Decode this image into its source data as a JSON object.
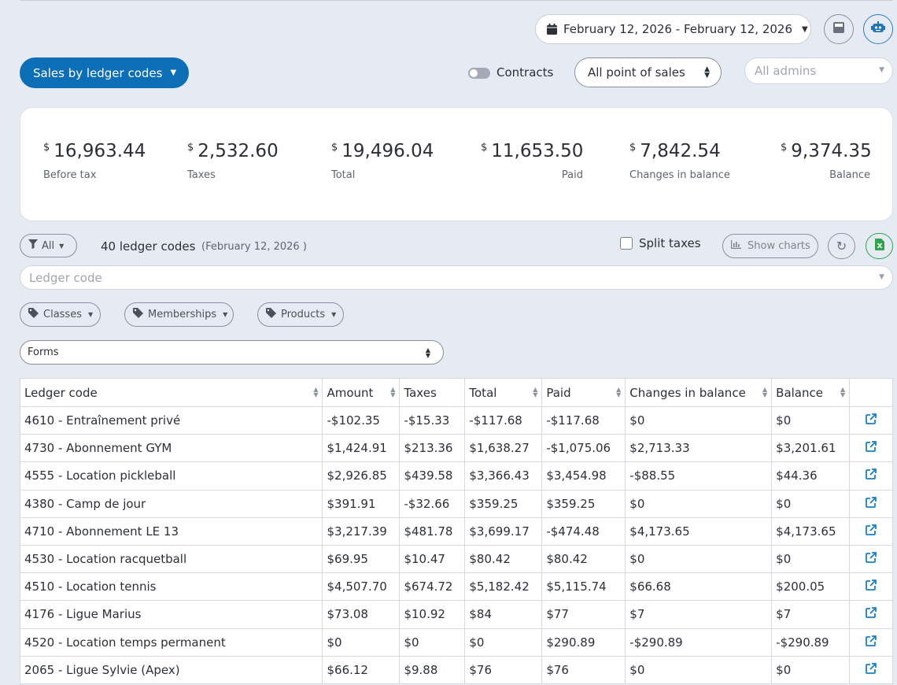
{
  "header": {
    "date_range": "February 12, 2026 - February 12, 2026",
    "calculator_icon": "calculator-icon",
    "robot_icon": "robot-icon"
  },
  "report_selector": {
    "label": "Sales by ledger codes"
  },
  "contracts_toggle": {
    "label": "Contracts",
    "on": false
  },
  "pos_select": {
    "value": "All point of sales"
  },
  "admins_select": {
    "placeholder": "All admins"
  },
  "stats": [
    {
      "currency": "$",
      "value": "16,963.44",
      "label": "Before tax"
    },
    {
      "currency": "$",
      "value": "2,532.60",
      "label": "Taxes"
    },
    {
      "currency": "$",
      "value": "19,496.04",
      "label": "Total"
    },
    {
      "currency": "$",
      "value": "11,653.50",
      "label": "Paid"
    },
    {
      "currency": "$",
      "value": "7,842.54",
      "label": "Changes in balance"
    },
    {
      "currency": "$",
      "value": "9,374.35",
      "label": "Balance"
    }
  ],
  "filters": {
    "all_label": "All",
    "count_label": "40 ledger codes",
    "count_date": "(February 12, 2026 )",
    "split_taxes_label": "Split taxes",
    "show_charts_label": "Show charts",
    "ledger_placeholder": "Ledger code",
    "tags": [
      "Classes",
      "Memberships",
      "Products"
    ],
    "forms_value": "Forms"
  },
  "table": {
    "headers": [
      "Ledger code",
      "Amount",
      "Taxes",
      "Total",
      "Paid",
      "Changes in balance",
      "Balance"
    ],
    "rows": [
      [
        "4610 - Entraînement privé",
        "-$102.35",
        "-$15.33",
        "-$117.68",
        "-$117.68",
        "$0",
        "$0"
      ],
      [
        "4730 - Abonnement GYM",
        "$1,424.91",
        "$213.36",
        "$1,638.27",
        "-$1,075.06",
        "$2,713.33",
        "$3,201.61"
      ],
      [
        "4555 - Location pickleball",
        "$2,926.85",
        "$439.58",
        "$3,366.43",
        "$3,454.98",
        "-$88.55",
        "$44.36"
      ],
      [
        "4380 - Camp de jour",
        "$391.91",
        "-$32.66",
        "$359.25",
        "$359.25",
        "$0",
        "$0"
      ],
      [
        "4710 - Abonnement LE 13",
        "$3,217.39",
        "$481.78",
        "$3,699.17",
        "-$474.48",
        "$4,173.65",
        "$4,173.65"
      ],
      [
        "4530 - Location racquetball",
        "$69.95",
        "$10.47",
        "$80.42",
        "$80.42",
        "$0",
        "$0"
      ],
      [
        "4510 - Location tennis",
        "$4,507.70",
        "$674.72",
        "$5,182.42",
        "$5,115.74",
        "$66.68",
        "$200.05"
      ],
      [
        "4176 - Ligue Marius",
        "$73.08",
        "$10.92",
        "$84",
        "$77",
        "$7",
        "$7"
      ],
      [
        "4520 - Location temps permanent",
        "$0",
        "$0",
        "$0",
        "$290.89",
        "-$290.89",
        "-$290.89"
      ],
      [
        "2065 - Ligue Sylvie (Apex)",
        "$66.12",
        "$9.88",
        "$76",
        "$76",
        "$0",
        "$0"
      ]
    ]
  },
  "colors": {
    "primary": "#0d6eb8",
    "link": "#1780c6",
    "excel": "#2ea34a",
    "background": "#e6ebf3"
  }
}
